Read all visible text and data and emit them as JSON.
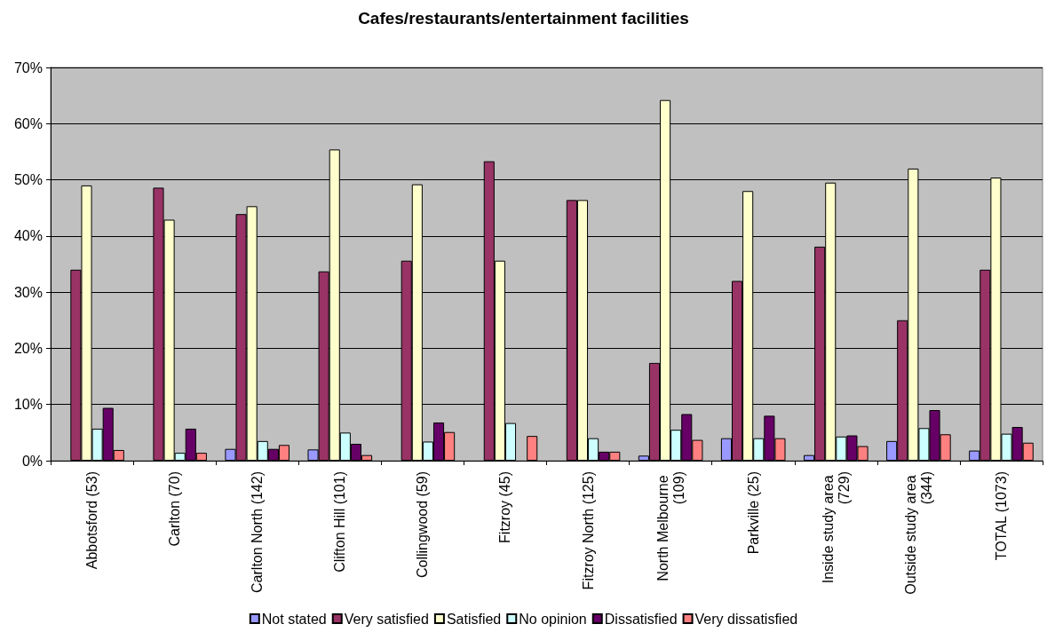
{
  "chart_data": {
    "type": "bar",
    "title": "Cafes/restaurants/entertainment facilities",
    "categories": [
      "Abbotsford (53)",
      "Carlton (70)",
      "Carlton North (142)",
      "Clifton Hill (101)",
      "Collingwood (59)",
      "Fitzroy (45)",
      "Fitzroy North (125)",
      "North Melbourne (109)",
      "Parkville (25)",
      "Inside study area (729)",
      "Outside study area (344)",
      "TOTAL (1073)"
    ],
    "series": [
      {
        "name": "Not stated",
        "color": "#9999ff",
        "values": [
          0,
          0,
          2.1,
          2.0,
          0,
          0,
          0,
          0.9,
          4.0,
          1.0,
          3.5,
          1.8
        ]
      },
      {
        "name": "Very satisfied",
        "color": "#993366",
        "values": [
          34.0,
          48.6,
          43.9,
          33.7,
          35.6,
          53.3,
          46.4,
          17.4,
          32.0,
          38.1,
          25.0,
          34.0
        ]
      },
      {
        "name": "Satisfied",
        "color": "#ffffcc",
        "values": [
          49.0,
          42.9,
          45.3,
          55.4,
          49.2,
          35.6,
          46.4,
          64.2,
          48.0,
          49.5,
          52.0,
          50.4
        ]
      },
      {
        "name": "No opinion",
        "color": "#ccffff",
        "values": [
          5.7,
          1.4,
          3.5,
          5.0,
          3.4,
          6.7,
          4.0,
          5.5,
          4.0,
          4.3,
          5.8,
          4.8
        ]
      },
      {
        "name": "Dissatisfied",
        "color": "#660066",
        "values": [
          9.4,
          5.7,
          2.1,
          3.0,
          6.8,
          0,
          1.6,
          8.3,
          8.0,
          4.5,
          9.0,
          6.0
        ]
      },
      {
        "name": "Very dissatisfied",
        "color": "#ff8080",
        "values": [
          1.9,
          1.4,
          2.8,
          1.0,
          5.1,
          4.4,
          1.6,
          3.7,
          4.0,
          2.6,
          4.7,
          3.2
        ]
      }
    ],
    "ylim": [
      0,
      70
    ],
    "yticks": [
      {
        "value": 0,
        "label": "0%"
      },
      {
        "value": 10,
        "label": "10%"
      },
      {
        "value": 20,
        "label": "20%"
      },
      {
        "value": 30,
        "label": "30%"
      },
      {
        "value": 40,
        "label": "40%"
      },
      {
        "value": 50,
        "label": "50%"
      },
      {
        "value": 60,
        "label": "60%"
      },
      {
        "value": 70,
        "label": "70%"
      }
    ],
    "grid": "y",
    "legend": "bottom"
  }
}
